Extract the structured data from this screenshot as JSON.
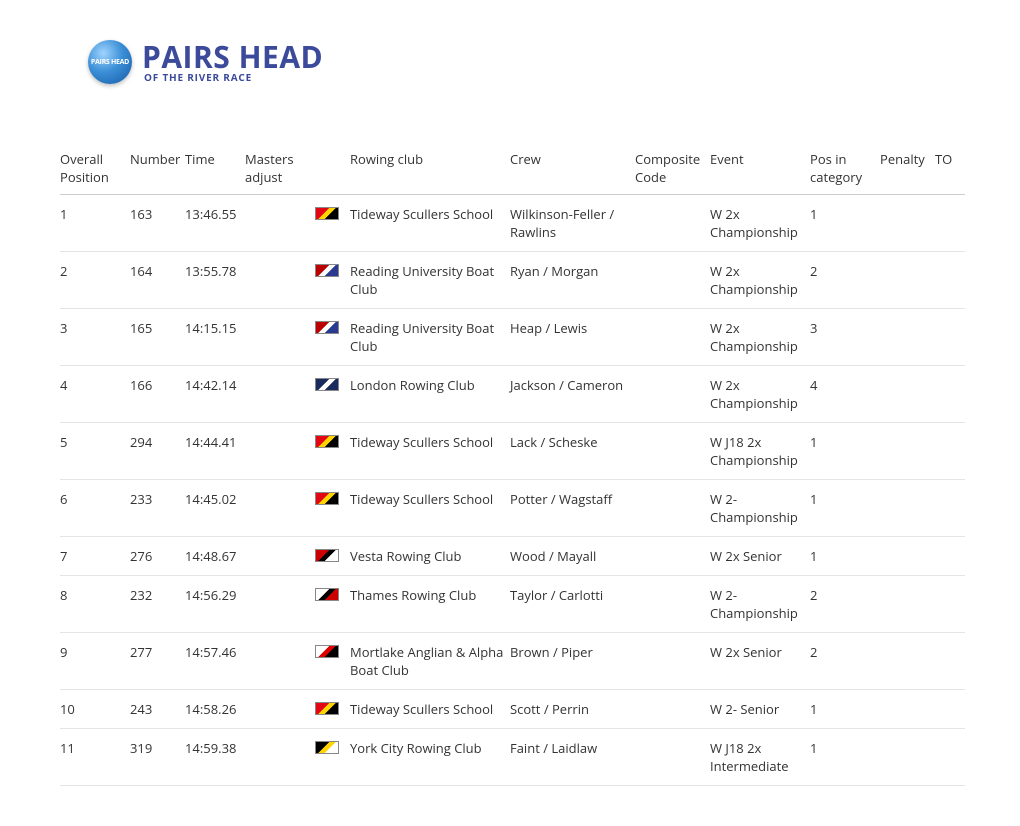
{
  "logo": {
    "circle_text": "PAIRS HEAD",
    "main": "PAIRS HEAD",
    "sub": "OF THE RIVER RACE"
  },
  "columns": [
    "Overall Position",
    "Number",
    "Time",
    "Masters adjust",
    "",
    "Rowing club",
    "Crew",
    "Composite Code",
    "Event",
    "Pos in category",
    "Penalty",
    "TO"
  ],
  "rows": [
    {
      "pos": "1",
      "num": "163",
      "time": "13:46.55",
      "adj": "",
      "flag": [
        "#e30613",
        "#ffd400",
        "#000"
      ],
      "club": "Tideway Scullers School",
      "crew": "Wilkinson-Feller / Rawlins",
      "comp": "",
      "event": "W 2x Championship",
      "pic": "1",
      "pen": "",
      "to": ""
    },
    {
      "pos": "2",
      "num": "164",
      "time": "13:55.78",
      "adj": "",
      "flag": [
        "#b00",
        "#fff",
        "#2a3a8f"
      ],
      "club": "Reading University Boat Club",
      "crew": "Ryan / Morgan",
      "comp": "",
      "event": "W 2x Championship",
      "pic": "2",
      "pen": "",
      "to": ""
    },
    {
      "pos": "3",
      "num": "165",
      "time": "14:15.15",
      "adj": "",
      "flag": [
        "#b00",
        "#fff",
        "#2a3a8f"
      ],
      "club": "Reading University Boat Club",
      "crew": "Heap / Lewis",
      "comp": "",
      "event": "W 2x Championship",
      "pic": "3",
      "pen": "",
      "to": ""
    },
    {
      "pos": "4",
      "num": "166",
      "time": "14:42.14",
      "adj": "",
      "flag": [
        "#1a2a5c",
        "#fff",
        "#1a2a5c"
      ],
      "club": "London Rowing Club",
      "crew": "Jackson / Cameron",
      "comp": "",
      "event": "W 2x Championship",
      "pic": "4",
      "pen": "",
      "to": ""
    },
    {
      "pos": "5",
      "num": "294",
      "time": "14:44.41",
      "adj": "",
      "flag": [
        "#e30613",
        "#ffd400",
        "#000"
      ],
      "club": "Tideway Scullers School",
      "crew": "Lack / Scheske",
      "comp": "",
      "event": "W J18 2x Championship",
      "pic": "1",
      "pen": "",
      "to": ""
    },
    {
      "pos": "6",
      "num": "233",
      "time": "14:45.02",
      "adj": "",
      "flag": [
        "#e30613",
        "#ffd400",
        "#000"
      ],
      "club": "Tideway Scullers School",
      "crew": "Potter / Wagstaff",
      "comp": "",
      "event": "W 2- Championship",
      "pic": "1",
      "pen": "",
      "to": ""
    },
    {
      "pos": "7",
      "num": "276",
      "time": "14:48.67",
      "adj": "",
      "flag": [
        "#c00",
        "#000",
        "#fff"
      ],
      "club": "Vesta Rowing Club",
      "crew": "Wood / Mayall",
      "comp": "",
      "event": "W 2x Senior",
      "pic": "1",
      "pen": "",
      "to": ""
    },
    {
      "pos": "8",
      "num": "232",
      "time": "14:56.29",
      "adj": "",
      "flag": [
        "#fff",
        "#000",
        "#c00"
      ],
      "club": "Thames Rowing Club",
      "crew": "Taylor / Carlotti",
      "comp": "",
      "event": "W 2- Championship",
      "pic": "2",
      "pen": "",
      "to": ""
    },
    {
      "pos": "9",
      "num": "277",
      "time": "14:57.46",
      "adj": "",
      "flag": [
        "#fff",
        "#d00",
        "#000"
      ],
      "club": "Mortlake Anglian & Alpha Boat Club",
      "crew": "Brown / Piper",
      "comp": "",
      "event": "W 2x Senior",
      "pic": "2",
      "pen": "",
      "to": ""
    },
    {
      "pos": "10",
      "num": "243",
      "time": "14:58.26",
      "adj": "",
      "flag": [
        "#e30613",
        "#ffd400",
        "#000"
      ],
      "club": "Tideway Scullers School",
      "crew": "Scott / Perrin",
      "comp": "",
      "event": "W 2- Senior",
      "pic": "1",
      "pen": "",
      "to": ""
    },
    {
      "pos": "11",
      "num": "319",
      "time": "14:59.38",
      "adj": "",
      "flag": [
        "#000",
        "#ffd400",
        "#fff"
      ],
      "club": "York City Rowing Club",
      "crew": "Faint / Laidlaw",
      "comp": "",
      "event": "W J18 2x Intermediate",
      "pic": "1",
      "pen": "",
      "to": ""
    }
  ]
}
